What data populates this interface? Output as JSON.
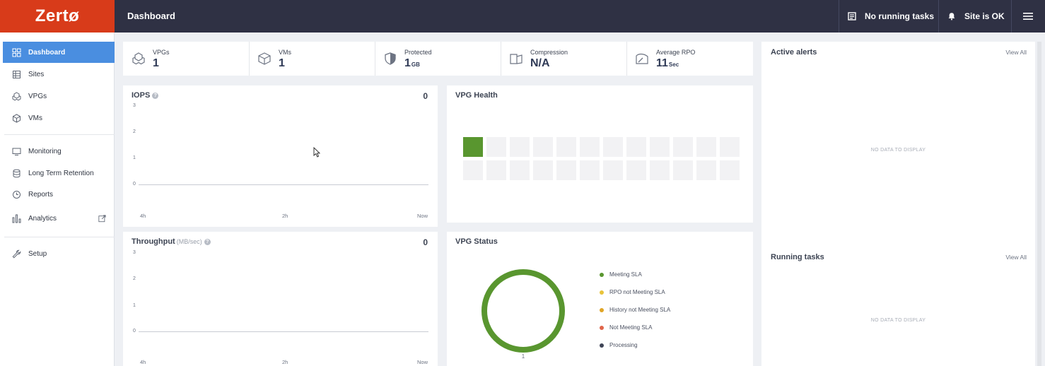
{
  "app": {
    "logo_text": "Zertø",
    "page_title": "Dashboard"
  },
  "topbar": {
    "tasks_label": "No running tasks",
    "site_label": "Site is OK",
    "icons": [
      "tasks-icon",
      "bell-icon",
      "hamburger-menu-icon"
    ]
  },
  "sidebar": {
    "items": [
      {
        "label": "Dashboard",
        "icon": "dashboard-icon",
        "active": true
      },
      {
        "label": "Sites",
        "icon": "sites-icon"
      },
      {
        "label": "VPGs",
        "icon": "vpgs-icon"
      },
      {
        "label": "VMs",
        "icon": "vm-cube-icon"
      },
      {
        "label": "Monitoring",
        "icon": "monitor-icon"
      },
      {
        "label": "Long Term Retention",
        "icon": "database-icon"
      },
      {
        "label": "Reports",
        "icon": "clock-icon"
      },
      {
        "label": "Analytics",
        "icon": "bar-chart-icon",
        "external": "external-link-icon"
      },
      {
        "label": "Setup",
        "icon": "wrench-icon"
      }
    ]
  },
  "stats": [
    {
      "label": "VPGs",
      "value": "1",
      "unit": "",
      "icon": "vpgs-icon"
    },
    {
      "label": "VMs",
      "value": "1",
      "unit": "",
      "icon": "vm-cube-icon"
    },
    {
      "label": "Protected",
      "value": "1",
      "unit": "GB",
      "icon": "shield-icon"
    },
    {
      "label": "Compression",
      "value": "N/A",
      "unit": "",
      "icon": "compression-icon"
    },
    {
      "label": "Average RPO",
      "value": "11",
      "unit": "Sec",
      "icon": "gauge-icon"
    }
  ],
  "iops": {
    "title": "IOPS",
    "value": "0",
    "y_ticks": [
      "3",
      "2",
      "1",
      "0"
    ],
    "x_ticks": [
      "4h",
      "2h",
      "Now"
    ]
  },
  "throughput": {
    "title": "Throughput",
    "unit": "(MB/sec)",
    "value": "0",
    "y_ticks": [
      "3",
      "2",
      "1",
      "0"
    ],
    "x_ticks": [
      "4h",
      "2h",
      "Now"
    ]
  },
  "vpg_health": {
    "title": "VPG Health",
    "filled_cells": 1,
    "total_cells": 24
  },
  "vpg_status": {
    "title": "VPG Status",
    "donut_label": "1",
    "legend": [
      {
        "label": "Meeting SLA",
        "color": "#59962f"
      },
      {
        "label": "RPO not Meeting SLA",
        "color": "#e8c33a"
      },
      {
        "label": "History not Meeting SLA",
        "color": "#e0a526"
      },
      {
        "label": "Not Meeting SLA",
        "color": "#e0654a"
      },
      {
        "label": "Processing",
        "color": "#3f4456"
      }
    ]
  },
  "chart_data": {
    "type": "pie",
    "title": "VPG Status",
    "categories": [
      "Meeting SLA",
      "RPO not Meeting SLA",
      "History not Meeting SLA",
      "Not Meeting SLA",
      "Processing"
    ],
    "values": [
      1,
      0,
      0,
      0,
      0
    ]
  },
  "active_alerts": {
    "title": "Active alerts",
    "view_all": "View All",
    "empty": "NO DATA TO DISPLAY"
  },
  "running_tasks": {
    "title": "Running tasks",
    "view_all": "View All",
    "empty": "NO DATA TO DISPLAY"
  }
}
